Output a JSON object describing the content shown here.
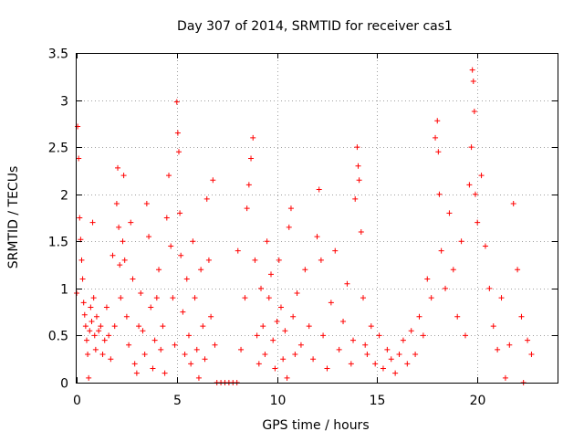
{
  "chart_data": {
    "type": "scatter",
    "title": "Day 307 of 2014, SRMTID for receiver cas1",
    "xlabel": "GPS time / hours",
    "ylabel": "SRMTID / TECUs",
    "xlim": [
      0,
      24
    ],
    "ylim": [
      0,
      3.5
    ],
    "xticks": [
      0,
      5,
      10,
      15,
      20
    ],
    "xtick_labels": [
      "0",
      "5",
      "10",
      "15",
      "20"
    ],
    "yticks": [
      0,
      0.5,
      1,
      1.5,
      2,
      2.5,
      3,
      3.5
    ],
    "ytick_labels": [
      "0",
      "0.5",
      "1",
      "1.5",
      "2",
      "2.5",
      "3",
      "3.5"
    ],
    "grid": true,
    "marker": "+",
    "marker_color": "#ff0000",
    "series": [
      {
        "name": "SRMTID",
        "points": [
          [
            0.0,
            0.95
          ],
          [
            0.05,
            2.72
          ],
          [
            0.1,
            2.38
          ],
          [
            0.15,
            1.75
          ],
          [
            0.2,
            1.52
          ],
          [
            0.25,
            1.3
          ],
          [
            0.3,
            1.1
          ],
          [
            0.35,
            0.85
          ],
          [
            0.4,
            0.72
          ],
          [
            0.45,
            0.6
          ],
          [
            0.5,
            0.45
          ],
          [
            0.55,
            0.3
          ],
          [
            0.6,
            0.05
          ],
          [
            0.65,
            0.55
          ],
          [
            0.7,
            0.8
          ],
          [
            0.75,
            0.65
          ],
          [
            0.8,
            1.7
          ],
          [
            0.85,
            0.9
          ],
          [
            0.9,
            0.5
          ],
          [
            0.95,
            0.35
          ],
          [
            1.0,
            0.7
          ],
          [
            1.1,
            0.55
          ],
          [
            1.2,
            0.6
          ],
          [
            1.3,
            0.3
          ],
          [
            1.4,
            0.45
          ],
          [
            1.5,
            0.8
          ],
          [
            1.6,
            0.5
          ],
          [
            1.7,
            0.25
          ],
          [
            1.8,
            1.35
          ],
          [
            1.9,
            0.6
          ],
          [
            2.0,
            1.9
          ],
          [
            2.05,
            2.28
          ],
          [
            2.1,
            1.65
          ],
          [
            2.15,
            1.25
          ],
          [
            2.2,
            0.9
          ],
          [
            2.3,
            1.5
          ],
          [
            2.35,
            2.2
          ],
          [
            2.4,
            1.3
          ],
          [
            2.5,
            0.7
          ],
          [
            2.6,
            0.4
          ],
          [
            2.7,
            1.7
          ],
          [
            2.8,
            1.1
          ],
          [
            2.9,
            0.2
          ],
          [
            3.0,
            0.1
          ],
          [
            3.1,
            0.6
          ],
          [
            3.2,
            0.95
          ],
          [
            3.3,
            0.55
          ],
          [
            3.4,
            0.3
          ],
          [
            3.5,
            1.9
          ],
          [
            3.6,
            1.55
          ],
          [
            3.7,
            0.8
          ],
          [
            3.8,
            0.15
          ],
          [
            3.9,
            0.45
          ],
          [
            4.0,
            0.9
          ],
          [
            4.1,
            1.2
          ],
          [
            4.2,
            0.35
          ],
          [
            4.3,
            0.6
          ],
          [
            4.4,
            0.1
          ],
          [
            4.5,
            1.75
          ],
          [
            4.6,
            2.2
          ],
          [
            4.7,
            1.45
          ],
          [
            4.8,
            0.9
          ],
          [
            4.9,
            0.4
          ],
          [
            5.0,
            2.98
          ],
          [
            5.05,
            2.65
          ],
          [
            5.1,
            2.45
          ],
          [
            5.15,
            1.8
          ],
          [
            5.2,
            1.35
          ],
          [
            5.3,
            0.75
          ],
          [
            5.4,
            0.3
          ],
          [
            5.5,
            1.1
          ],
          [
            5.6,
            0.5
          ],
          [
            5.7,
            0.2
          ],
          [
            5.8,
            1.5
          ],
          [
            5.9,
            0.9
          ],
          [
            6.0,
            0.35
          ],
          [
            6.1,
            0.05
          ],
          [
            6.2,
            1.2
          ],
          [
            6.3,
            0.6
          ],
          [
            6.4,
            0.25
          ],
          [
            6.5,
            1.95
          ],
          [
            6.6,
            1.3
          ],
          [
            6.7,
            0.7
          ],
          [
            6.8,
            2.15
          ],
          [
            6.9,
            0.4
          ],
          [
            7.0,
            0.0
          ],
          [
            7.2,
            0.0
          ],
          [
            7.4,
            0.0
          ],
          [
            7.6,
            0.0
          ],
          [
            7.8,
            0.0
          ],
          [
            8.0,
            0.0
          ],
          [
            8.05,
            1.4
          ],
          [
            8.2,
            0.35
          ],
          [
            8.4,
            0.9
          ],
          [
            8.5,
            1.85
          ],
          [
            8.6,
            2.1
          ],
          [
            8.7,
            2.38
          ],
          [
            8.8,
            2.6
          ],
          [
            8.9,
            1.3
          ],
          [
            9.0,
            0.5
          ],
          [
            9.1,
            0.2
          ],
          [
            9.2,
            1.0
          ],
          [
            9.3,
            0.6
          ],
          [
            9.4,
            0.3
          ],
          [
            9.5,
            1.5
          ],
          [
            9.6,
            0.9
          ],
          [
            9.7,
            1.15
          ],
          [
            9.8,
            0.45
          ],
          [
            9.9,
            0.15
          ],
          [
            10.0,
            0.65
          ],
          [
            10.1,
            1.3
          ],
          [
            10.2,
            0.8
          ],
          [
            10.3,
            0.25
          ],
          [
            10.4,
            0.55
          ],
          [
            10.5,
            0.05
          ],
          [
            10.6,
            1.65
          ],
          [
            10.7,
            1.85
          ],
          [
            10.8,
            0.7
          ],
          [
            10.9,
            0.3
          ],
          [
            11.0,
            0.95
          ],
          [
            11.2,
            0.4
          ],
          [
            11.4,
            1.2
          ],
          [
            11.6,
            0.6
          ],
          [
            11.8,
            0.25
          ],
          [
            12.0,
            1.55
          ],
          [
            12.1,
            2.05
          ],
          [
            12.2,
            1.3
          ],
          [
            12.3,
            0.5
          ],
          [
            12.5,
            0.15
          ],
          [
            12.7,
            0.85
          ],
          [
            12.9,
            1.4
          ],
          [
            13.1,
            0.35
          ],
          [
            13.3,
            0.65
          ],
          [
            13.5,
            1.05
          ],
          [
            13.7,
            0.2
          ],
          [
            13.8,
            0.45
          ],
          [
            13.9,
            1.95
          ],
          [
            14.0,
            2.5
          ],
          [
            14.05,
            2.3
          ],
          [
            14.1,
            2.15
          ],
          [
            14.2,
            1.6
          ],
          [
            14.3,
            0.9
          ],
          [
            14.4,
            0.4
          ],
          [
            14.5,
            0.3
          ],
          [
            14.7,
            0.6
          ],
          [
            14.9,
            0.2
          ],
          [
            15.1,
            0.5
          ],
          [
            15.3,
            0.15
          ],
          [
            15.5,
            0.35
          ],
          [
            15.7,
            0.25
          ],
          [
            15.9,
            0.1
          ],
          [
            16.1,
            0.3
          ],
          [
            16.3,
            0.45
          ],
          [
            16.5,
            0.2
          ],
          [
            16.7,
            0.55
          ],
          [
            16.9,
            0.3
          ],
          [
            17.1,
            0.7
          ],
          [
            17.3,
            0.5
          ],
          [
            17.5,
            1.1
          ],
          [
            17.7,
            0.9
          ],
          [
            17.9,
            2.6
          ],
          [
            18.0,
            2.78
          ],
          [
            18.05,
            2.45
          ],
          [
            18.1,
            2.0
          ],
          [
            18.2,
            1.4
          ],
          [
            18.4,
            1.0
          ],
          [
            18.6,
            1.8
          ],
          [
            18.8,
            1.2
          ],
          [
            19.0,
            0.7
          ],
          [
            19.2,
            1.5
          ],
          [
            19.4,
            0.5
          ],
          [
            19.6,
            2.1
          ],
          [
            19.7,
            2.5
          ],
          [
            19.75,
            3.32
          ],
          [
            19.8,
            3.2
          ],
          [
            19.85,
            2.88
          ],
          [
            19.9,
            2.0
          ],
          [
            20.0,
            1.7
          ],
          [
            20.2,
            2.2
          ],
          [
            20.4,
            1.45
          ],
          [
            20.6,
            1.0
          ],
          [
            20.8,
            0.6
          ],
          [
            21.0,
            0.35
          ],
          [
            21.2,
            0.9
          ],
          [
            21.4,
            0.05
          ],
          [
            21.6,
            0.4
          ],
          [
            21.8,
            1.9
          ],
          [
            22.0,
            1.2
          ],
          [
            22.2,
            0.7
          ],
          [
            22.3,
            0.0
          ],
          [
            22.5,
            0.45
          ],
          [
            22.7,
            0.3
          ]
        ]
      }
    ]
  }
}
